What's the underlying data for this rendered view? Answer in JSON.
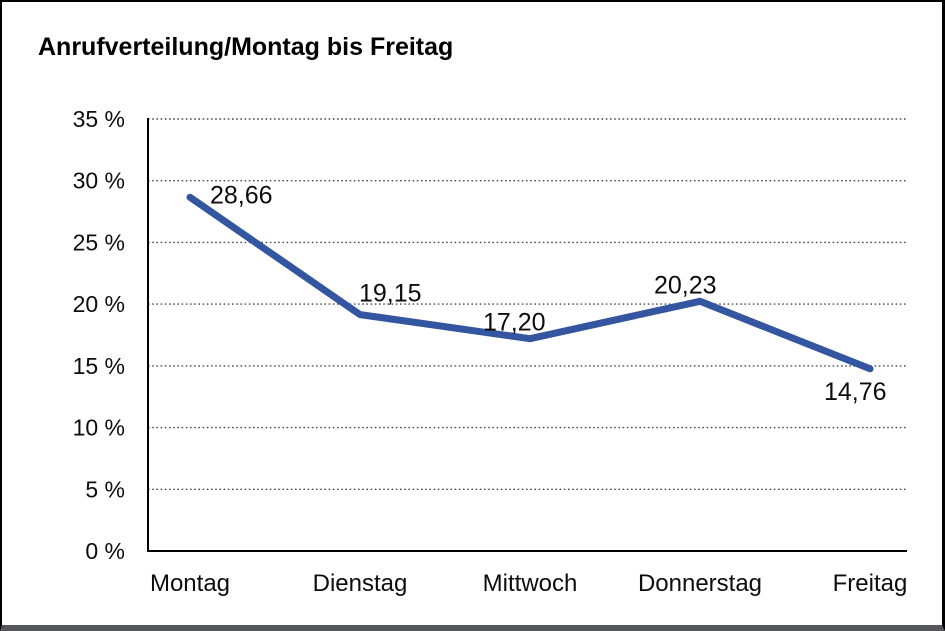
{
  "chart_data": {
    "type": "line",
    "title": "Anrufverteilung/Montag bis Freitag",
    "categories": [
      "Montag",
      "Dienstag",
      "Mittwoch",
      "Donnerstag",
      "Freitag"
    ],
    "values": [
      28.66,
      19.15,
      17.2,
      20.23,
      14.76
    ],
    "point_labels": [
      "28,66",
      "19,15",
      "17,20",
      "20,23",
      "14,76"
    ],
    "xlabel": "",
    "ylabel": "",
    "ylim": [
      0,
      35
    ],
    "y_tick_step": 5,
    "y_tick_labels": [
      "0 %",
      "5 %",
      "10 %",
      "15 %",
      "20 %",
      "25 %",
      "30 %",
      "35 %"
    ],
    "grid": "horizontal-dotted",
    "legend": "none",
    "line_color": "#34559F",
    "axis_color": "#000000",
    "gridline_color": "#4a4a4a"
  }
}
